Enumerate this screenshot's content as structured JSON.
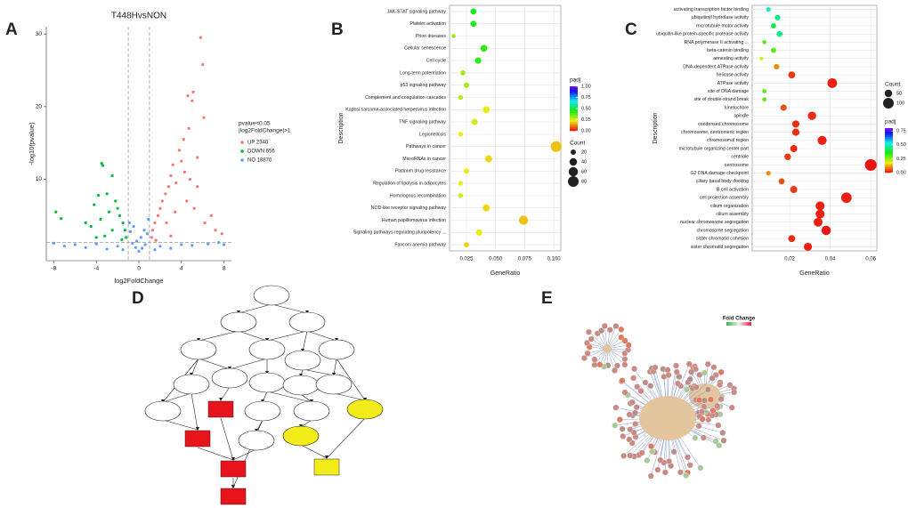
{
  "chart_data": [
    {
      "type": "volcano",
      "panel": "A",
      "title": "T448HvsNON",
      "x_label": "log2FoldChange",
      "y_label": "-log10(pvalue)",
      "xlim": [
        -8.7,
        8.7
      ],
      "ylim": [
        -1.2,
        31
      ],
      "xticks": [
        -8,
        -4,
        0,
        4,
        8
      ],
      "yticks": [
        10,
        20,
        30
      ],
      "threshold_x": [
        -1,
        1
      ],
      "threshold_y": 1.3,
      "legend_title": [
        "pvalue<0.05",
        "|log2FoldChange|>1"
      ],
      "series": [
        {
          "name": "UP 2340",
          "color": "#f8766d",
          "x": [
            5.8,
            6,
            6.1,
            5.1,
            5,
            4.6,
            4.7,
            4.2,
            3.8,
            4,
            3.2,
            3,
            2.8,
            3.5,
            2.5,
            2.2,
            2,
            1.8,
            1.5,
            1.3,
            1.2,
            2.6,
            3.4,
            4.5,
            5.2,
            4.8,
            5.5,
            6.2,
            6.8,
            7.2,
            7.8,
            1.6,
            3,
            5.5,
            4.3
          ],
          "values": [
            29.5,
            25.8,
            18.5,
            22,
            20.8,
            21.5,
            17,
            15.5,
            14,
            12.5,
            12,
            10.5,
            9,
            9.5,
            8,
            7,
            6,
            5,
            4,
            3,
            2,
            4,
            5.5,
            7,
            6,
            10,
            9,
            4,
            5,
            3,
            2.5,
            1.6,
            2.2,
            13,
            11
          ]
        },
        {
          "name": "DOWN 656",
          "color": "#00ba38",
          "x": [
            -3.5,
            -3.4,
            -2.5,
            -7.8,
            -7.3,
            -4.2,
            -3.8,
            -3,
            -2.2,
            -2,
            -1.8,
            -1.5,
            -1.3,
            -1.2,
            -2.8,
            -3.6,
            -4.5,
            -5,
            -2.5,
            -1.6,
            -3.2,
            -4
          ],
          "values": [
            12.2,
            11.9,
            10.5,
            5.5,
            4.6,
            6.5,
            7.8,
            8,
            7,
            6,
            5,
            4,
            3,
            2,
            5.5,
            4.5,
            3.5,
            4,
            3,
            1.7,
            2.2,
            2
          ]
        },
        {
          "name": "NO 18870",
          "color": "#619cff",
          "x": [
            0,
            0.3,
            -0.3,
            0.6,
            -0.6,
            0.8,
            -0.8,
            0.5,
            -0.5,
            0.9,
            -0.9,
            0.2,
            -0.2,
            -6,
            -7,
            -5,
            -3,
            -2,
            2,
            3,
            5,
            6.5,
            7.5,
            8,
            -8,
            4,
            -4,
            1.5,
            -1.5
          ],
          "values": [
            0.1,
            0.5,
            0.6,
            1,
            1.2,
            2.5,
            2.8,
            3,
            3.5,
            4.5,
            4,
            2,
            1.5,
            1,
            0.8,
            0.6,
            0.4,
            0.8,
            0.8,
            0.5,
            0.9,
            1.1,
            1.3,
            1,
            1.2,
            1,
            1.1,
            0.3,
            0.3
          ]
        }
      ]
    },
    {
      "type": "dot",
      "panel": "B",
      "x_label": "GeneRatio",
      "y_label": "Description",
      "xlim": [
        0.0105,
        0.106
      ],
      "xticks": [
        0.025,
        {
          "value": 0.05,
          "label": "0.050"
        },
        0.075,
        {
          "value": 0.1,
          "label": "0.100"
        }
      ],
      "categories": [
        "JAK-STAT signaling pathway",
        "Platelet activation",
        "Prion diseases",
        "Cellular senescence",
        "Cell cycle",
        "Long-term potentiation",
        "p53 signaling pathway",
        "Complement and coagulation cascades",
        "Kaposi sarcoma-associated herpesvirus infection",
        "TNF signaling pathway",
        "Legionellosis",
        "Pathways in cancer",
        "MicroRNAs in cancer",
        "Platinum drug resistance",
        "Regulation of lipolysis in adipocytes",
        "Homologous recombination",
        "NOD-like receptor signaling pathway",
        "Human papillomavirus infection",
        "Signaling pathways regulating pluripotency ...",
        "Fanconi anemia pathway"
      ],
      "values": [
        0.031,
        0.031,
        0.014,
        0.04,
        0.035,
        0.022,
        0.025,
        0.02,
        0.042,
        0.032,
        0.02,
        0.102,
        0.044,
        0.025,
        0.02,
        0.02,
        0.042,
        0.074,
        0.036,
        0.025
      ],
      "count": [
        25,
        25,
        11,
        32,
        28,
        18,
        20,
        16,
        34,
        26,
        16,
        82,
        35,
        20,
        16,
        16,
        34,
        59,
        29,
        20
      ],
      "padj": [
        0.45,
        0.45,
        0.3,
        0.42,
        0.42,
        0.3,
        0.3,
        0.28,
        0.22,
        0.25,
        0.22,
        0.18,
        0.2,
        0.22,
        0.22,
        0.25,
        0.2,
        0.18,
        0.22,
        0.2
      ],
      "color_legend": {
        "title": "padj",
        "lim": [
          0,
          1
        ],
        "ticks": [
          {
            "value": 1,
            "label": "1.00"
          },
          0.75,
          {
            "value": 0.5,
            "label": "0.50"
          },
          0.25,
          {
            "value": 0,
            "label": "0.00"
          }
        ]
      },
      "size_legend": {
        "title": "Count",
        "values": [
          20,
          40,
          60,
          80
        ]
      }
    },
    {
      "type": "dot",
      "panel": "C",
      "x_label": "GeneRatio",
      "y_label": "Description",
      "xlim": [
        0.0015,
        0.063
      ],
      "xticks": [
        0.02,
        0.04,
        0.06
      ],
      "categories": [
        "activating transcription factor binding",
        "ubiquitinyl hydrolase activity",
        "microtubule motor activity",
        "ubiquitin-like protein-specific protease activity",
        "RNA polymerase II activating ...",
        "beta-catenin binding",
        "annealing activity",
        "DNA-dependent ATPase activity",
        "helicase activity",
        "ATPase activity",
        "site of DNA damage",
        "site of double-strand break",
        "kinetochore",
        "spindle",
        "condensed chromosome",
        "chromosome, centromeric region",
        "chromosomal region",
        "microtubule organizing center part",
        "centriole",
        "centrosome",
        "G2 DNA damage checkpoint",
        "ciliary basal body docking",
        "B cell activation",
        "cell projection assembly",
        "cilium organization",
        "cilium assembly",
        "nuclear chromosome segregation",
        "chromosome segregation",
        "sister chromatid cohesion",
        "sister chromatid segregation"
      ],
      "values": [
        0.0095,
        0.014,
        0.012,
        0.015,
        0.0075,
        0.012,
        0.006,
        0.0135,
        0.021,
        0.041,
        0.0075,
        0.0075,
        0.017,
        0.031,
        0.023,
        0.023,
        0.036,
        0.022,
        0.019,
        0.06,
        0.0095,
        0.016,
        0.022,
        0.048,
        0.035,
        0.035,
        0.034,
        0.038,
        0.021,
        0.029
      ],
      "count": [
        19,
        28,
        24,
        30,
        15,
        24,
        12,
        27,
        42,
        82,
        15,
        15,
        34,
        62,
        46,
        46,
        72,
        44,
        38,
        120,
        19,
        32,
        44,
        96,
        70,
        70,
        68,
        76,
        42,
        58
      ],
      "padj": [
        0.5,
        0.45,
        0.4,
        0.45,
        0.3,
        0.3,
        0.2,
        0.1,
        0.03,
        0.01,
        0.3,
        0.3,
        0.05,
        0.02,
        0.02,
        0.02,
        0.01,
        0.02,
        0.03,
        0.001,
        0.1,
        0.05,
        0.03,
        0.01,
        0.01,
        0.01,
        0.01,
        0.005,
        0.02,
        0.01
      ],
      "color_legend": {
        "title": "padj",
        "lim": [
          0,
          0.8
        ],
        "ticks": [
          0.75,
          {
            "value": 0.5,
            "label": "0.50"
          },
          0.25,
          {
            "value": 0,
            "label": "0.00"
          }
        ]
      },
      "size_legend": {
        "title": "Count",
        "values": [
          50,
          100
        ]
      }
    }
  ],
  "diagram_panels": [
    {
      "panel": "D"
    },
    {
      "panel": "E",
      "legend_title": "Fold Change"
    }
  ]
}
